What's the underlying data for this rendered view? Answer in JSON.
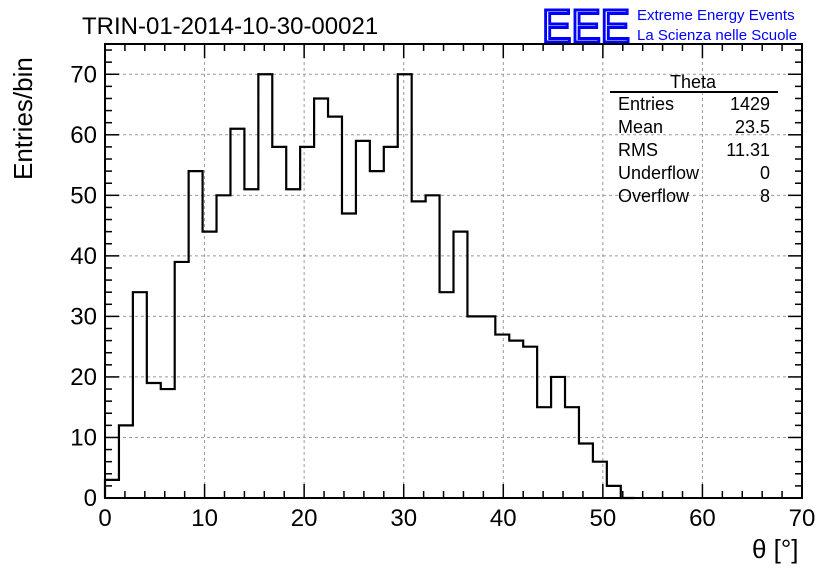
{
  "logo": {
    "text": "EEE",
    "line1": "Extreme Energy Events",
    "line2": "La Scienza nelle Scuole",
    "color": "#0000ff"
  },
  "chart_data": {
    "type": "histogram",
    "title": "TRIN-01-2014-10-30-00021",
    "xlabel": "θ [°]",
    "ylabel": "Entries/bin",
    "xlim": [
      0,
      70
    ],
    "ylim": [
      0,
      75
    ],
    "grid": true,
    "bin_width": 1.4,
    "bin_edges_start": 0,
    "values": [
      3,
      12,
      34,
      19,
      18,
      39,
      54,
      44,
      50,
      61,
      51,
      70,
      58,
      51,
      58,
      66,
      63,
      47,
      59,
      54,
      58,
      70,
      49,
      50,
      34,
      44,
      30,
      30,
      27,
      26,
      25,
      15,
      20,
      15,
      9,
      6,
      2,
      0
    ],
    "x_ticks": [
      0,
      10,
      20,
      30,
      40,
      50,
      60,
      70
    ],
    "y_ticks": [
      0,
      10,
      20,
      30,
      40,
      50,
      60,
      70
    ],
    "stats_box": {
      "title": "Theta",
      "rows": [
        {
          "label": "Entries",
          "value": "1429"
        },
        {
          "label": "Mean",
          "value": "23.5"
        },
        {
          "label": "RMS",
          "value": "11.31"
        },
        {
          "label": "Underflow",
          "value": "0"
        },
        {
          "label": "Overflow",
          "value": "8"
        }
      ]
    }
  }
}
